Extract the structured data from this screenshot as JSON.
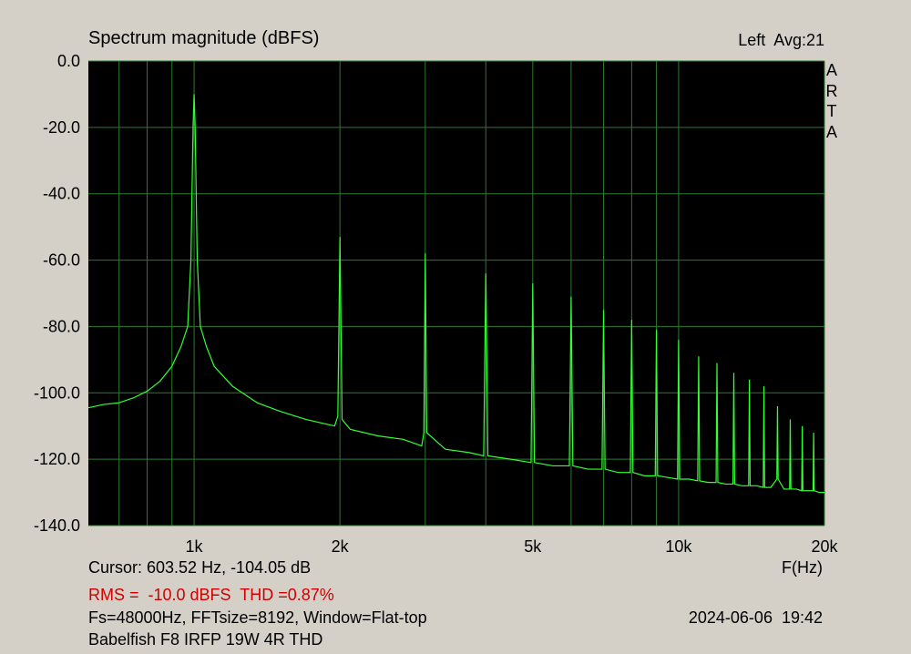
{
  "chart_data": {
    "type": "line",
    "title": "Spectrum magnitude (dBFS)",
    "channel_info": "Left  Avg:21",
    "watermark": "ARTA",
    "x_axis_label": "F(Hz)",
    "cursor_info": "Cursor: 603.52 Hz, -104.05 dB",
    "measurement": "RMS =  -10.0 dBFS  THD =0.87%",
    "settings_info": "Fs=48000Hz, FFTsize=8192, Window=Flat-top",
    "timestamp": "2024-06-06  19:42",
    "note": "Babelfish F8 IRFP 19W 4R THD",
    "x_scale": "log",
    "grid": true,
    "color": "#33ff33",
    "xlim": [
      605,
      20000
    ],
    "ylim": [
      -140,
      0
    ],
    "xticks": [
      {
        "value": 1000,
        "label": "1k"
      },
      {
        "value": 2000,
        "label": "2k"
      },
      {
        "value": 5000,
        "label": "5k"
      },
      {
        "value": 10000,
        "label": "10k"
      },
      {
        "value": 20000,
        "label": "20k"
      }
    ],
    "xminor": [
      700,
      800,
      900,
      3000,
      4000,
      6000,
      7000,
      8000,
      9000
    ],
    "yticks": [
      {
        "value": 0,
        "label": "0.0"
      },
      {
        "value": -20,
        "label": "-20.0"
      },
      {
        "value": -40,
        "label": "-40.0"
      },
      {
        "value": -60,
        "label": "-60.0"
      },
      {
        "value": -80,
        "label": "-80.0"
      },
      {
        "value": -100,
        "label": "-100.0"
      },
      {
        "value": -120,
        "label": "-120.0"
      },
      {
        "value": -140,
        "label": "-140.0"
      }
    ],
    "x": [
      605,
      650,
      700,
      750,
      800,
      850,
      900,
      940,
      970,
      985,
      995,
      1000,
      1005,
      1015,
      1030,
      1060,
      1100,
      1200,
      1350,
      1500,
      1700,
      1950,
      1980,
      2000,
      2020,
      2100,
      2400,
      2700,
      2950,
      2980,
      3000,
      3020,
      3300,
      3700,
      3960,
      4000,
      4040,
      4500,
      4960,
      5000,
      5040,
      5500,
      5950,
      6000,
      6050,
      6500,
      6950,
      7000,
      7050,
      7500,
      7950,
      8000,
      8050,
      8500,
      8950,
      9000,
      9050,
      9500,
      9950,
      10000,
      10050,
      10500,
      10950,
      11000,
      11050,
      11500,
      11950,
      12000,
      12050,
      12500,
      12950,
      13000,
      13050,
      13500,
      13950,
      14000,
      14050,
      14500,
      14950,
      15000,
      15050,
      15500,
      15950,
      16000,
      16050,
      16500,
      16950,
      17000,
      17050,
      17500,
      17950,
      18000,
      18050,
      18500,
      18950,
      19000,
      19050,
      19500,
      20000
    ],
    "values": [
      -104.5,
      -103.5,
      -103,
      -101.5,
      -99.5,
      -96.5,
      -92,
      -86,
      -80,
      -60,
      -20,
      -10,
      -20,
      -60,
      -80,
      -86,
      -92,
      -98,
      -103,
      -105.5,
      -108,
      -110,
      -107,
      -53,
      -108,
      -111,
      -113,
      -114,
      -116,
      -112,
      -58,
      -112,
      -117,
      -118,
      -119,
      -64,
      -119,
      -120,
      -121,
      -67,
      -121,
      -122,
      -122,
      -71,
      -122,
      -123,
      -123,
      -75,
      -123,
      -124,
      -124,
      -78,
      -124,
      -125,
      -125,
      -81,
      -125,
      -125.5,
      -126,
      -84,
      -126,
      -126,
      -126.5,
      -89,
      -126.5,
      -127,
      -127,
      -91,
      -127,
      -127.5,
      -127.5,
      -94,
      -127.5,
      -128,
      -128,
      -96,
      -128,
      -128,
      -128.5,
      -98,
      -128.5,
      -128.5,
      -126,
      -104,
      -126,
      -129,
      -129,
      -108,
      -129,
      -129,
      -129.5,
      -110,
      -129.5,
      -129.5,
      -129.5,
      -112,
      -129.5,
      -130,
      -130
    ]
  }
}
